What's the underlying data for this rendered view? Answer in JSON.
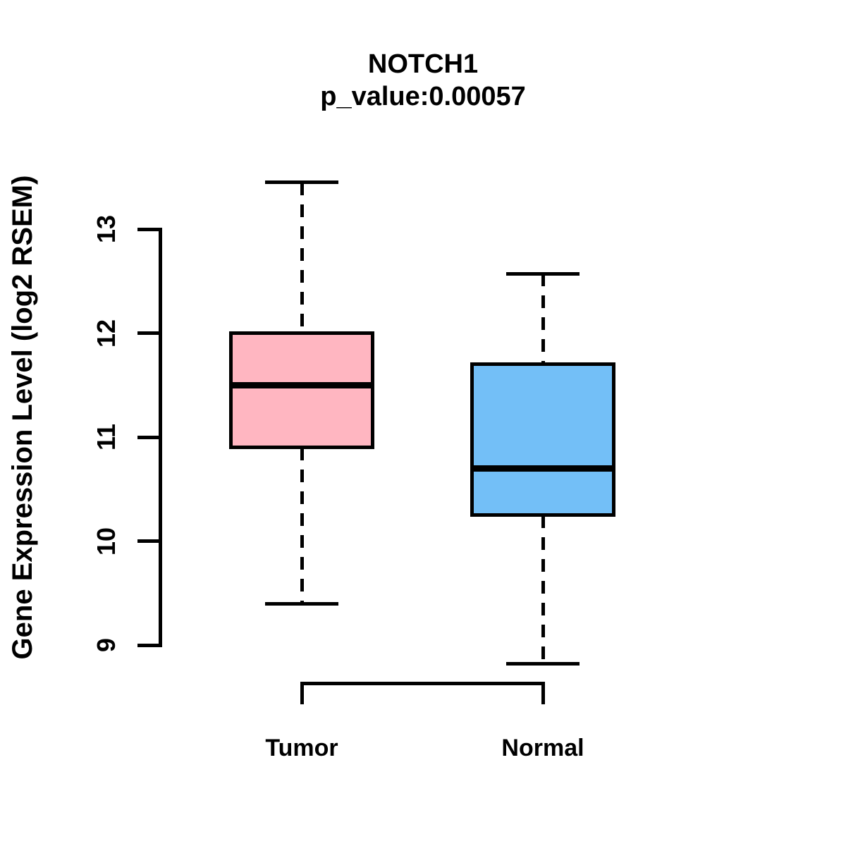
{
  "chart_data": {
    "type": "box",
    "title": "NOTCH1",
    "subtitle": "p_value:0.00057",
    "ylabel": "Gene Expression Level (log2 RSEM)",
    "xlabel": "",
    "y_ticks": [
      9,
      10,
      11,
      12,
      13
    ],
    "ylim": [
      8.6,
      13.6
    ],
    "grid": false,
    "legend_position": "none",
    "categories": [
      "Tumor",
      "Normal"
    ],
    "groups": [
      {
        "name": "Tumor",
        "fill_color": "#FFB6C1",
        "lower_whisker": 9.4,
        "q1": 10.9,
        "median": 11.5,
        "q3": 12.0,
        "upper_whisker": 13.45
      },
      {
        "name": "Normal",
        "fill_color": "#73BFF7",
        "lower_whisker": 8.82,
        "q1": 10.25,
        "median": 10.7,
        "q3": 11.7,
        "upper_whisker": 12.57
      }
    ],
    "colors": {
      "box_border": "#000000",
      "median_line": "#000000",
      "axis": "#000000",
      "text": "#000000",
      "background": "#FFFFFF"
    }
  }
}
